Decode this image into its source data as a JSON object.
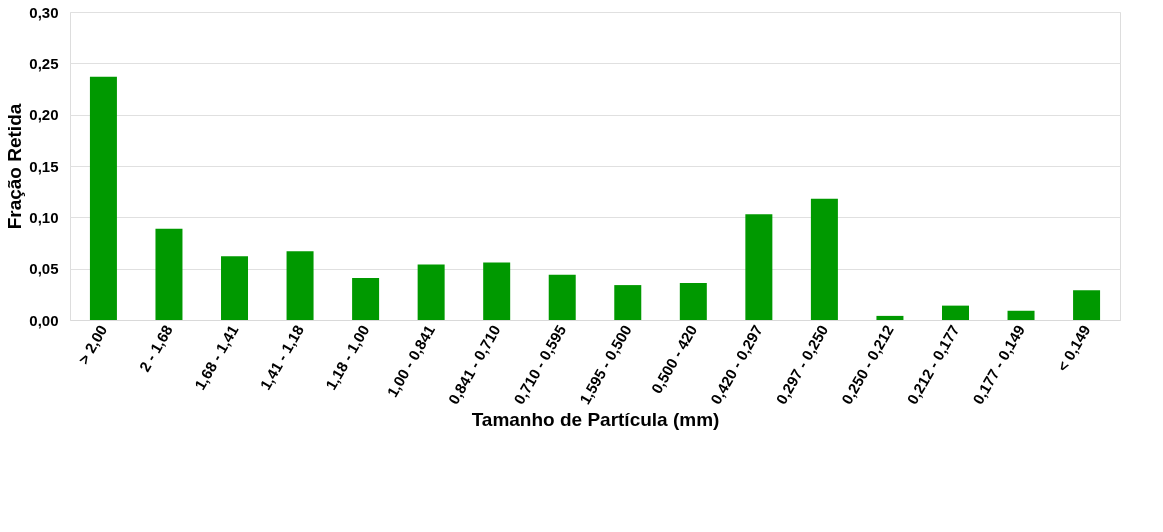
{
  "chart_data": {
    "type": "bar",
    "xlabel": "Tamanho de Partícula (mm)",
    "ylabel": "Fração Retida",
    "categories": [
      "> 2,00",
      "2 - 1,68",
      "1,68 - 1,41",
      "1,41 - 1,18",
      "1,18 - 1,00",
      "1,00 - 0,841",
      "0,841 - 0,710",
      "0,710 - 0,595",
      "1,595 - 0,500",
      "0,500 - 420",
      "0,420 - 0,297",
      "0,297 - 0,250",
      "0,250 - 0,212",
      "0,212 - 0,177",
      "0,177 - 0,149",
      "< 0,149"
    ],
    "values": [
      0.237,
      0.089,
      0.062,
      0.067,
      0.041,
      0.054,
      0.056,
      0.044,
      0.034,
      0.036,
      0.103,
      0.118,
      0.004,
      0.014,
      0.009,
      0.029
    ],
    "color": "#009900",
    "ylim": [
      0,
      0.3
    ],
    "yticks": [
      {
        "value": 0,
        "label": "0,00"
      },
      {
        "value": 0.05,
        "label": "0,05"
      },
      {
        "value": 0.1,
        "label": "0,10"
      },
      {
        "value": 0.15,
        "label": "0,15"
      },
      {
        "value": 0.2,
        "label": "0,20"
      },
      {
        "value": 0.25,
        "label": "0,25"
      },
      {
        "value": 0.3,
        "label": "0,30"
      }
    ],
    "grid": "y"
  }
}
